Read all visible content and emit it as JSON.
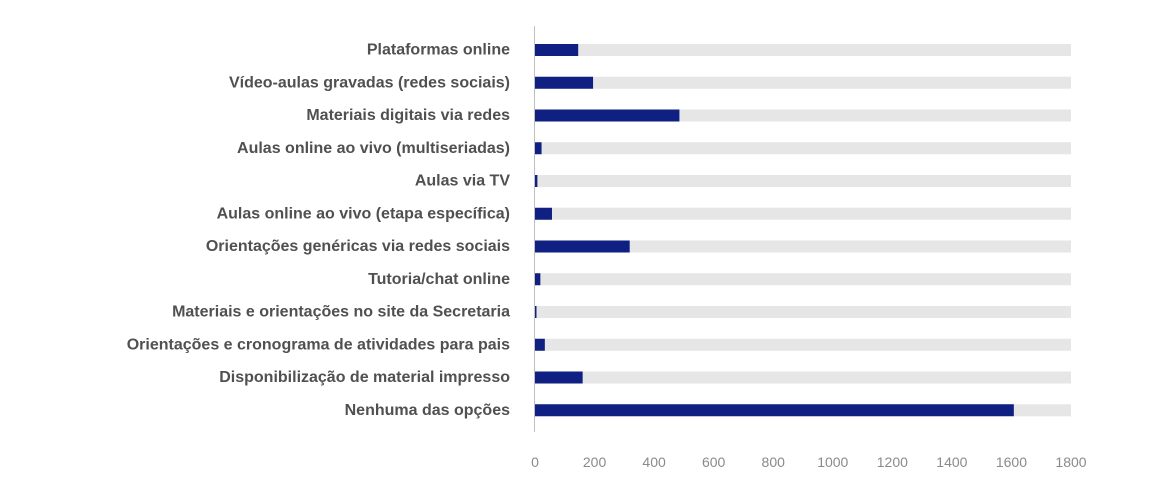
{
  "chart_data": {
    "type": "bar",
    "orientation": "horizontal",
    "categories": [
      "Plataformas online",
      "Vídeo-aulas gravadas (redes sociais)",
      "Materiais digitais via redes",
      "Aulas online ao vivo (multiseriadas)",
      "Aulas via TV",
      "Aulas online ao vivo (etapa específica)",
      "Orientações genéricas via redes sociais",
      "Tutoria/chat online",
      "Materiais e orientações no site da Secretaria",
      "Orientações e cronograma de atividades para pais",
      "Disponibilização de material impresso",
      "Nenhuma das opções"
    ],
    "values": [
      145,
      195,
      485,
      22,
      8,
      57,
      318,
      18,
      5,
      33,
      160,
      1608
    ],
    "background_total": 1800,
    "xlim": [
      0,
      1800
    ],
    "xticks": [
      0,
      200,
      400,
      600,
      800,
      1000,
      1200,
      1400,
      1600,
      1800
    ],
    "title": "",
    "xlabel": "",
    "ylabel": "",
    "grid": false,
    "legend": "none",
    "colors": {
      "bar": "#0f1f82",
      "track": "#e6e6e6",
      "axis": "#bfbfbf"
    }
  }
}
